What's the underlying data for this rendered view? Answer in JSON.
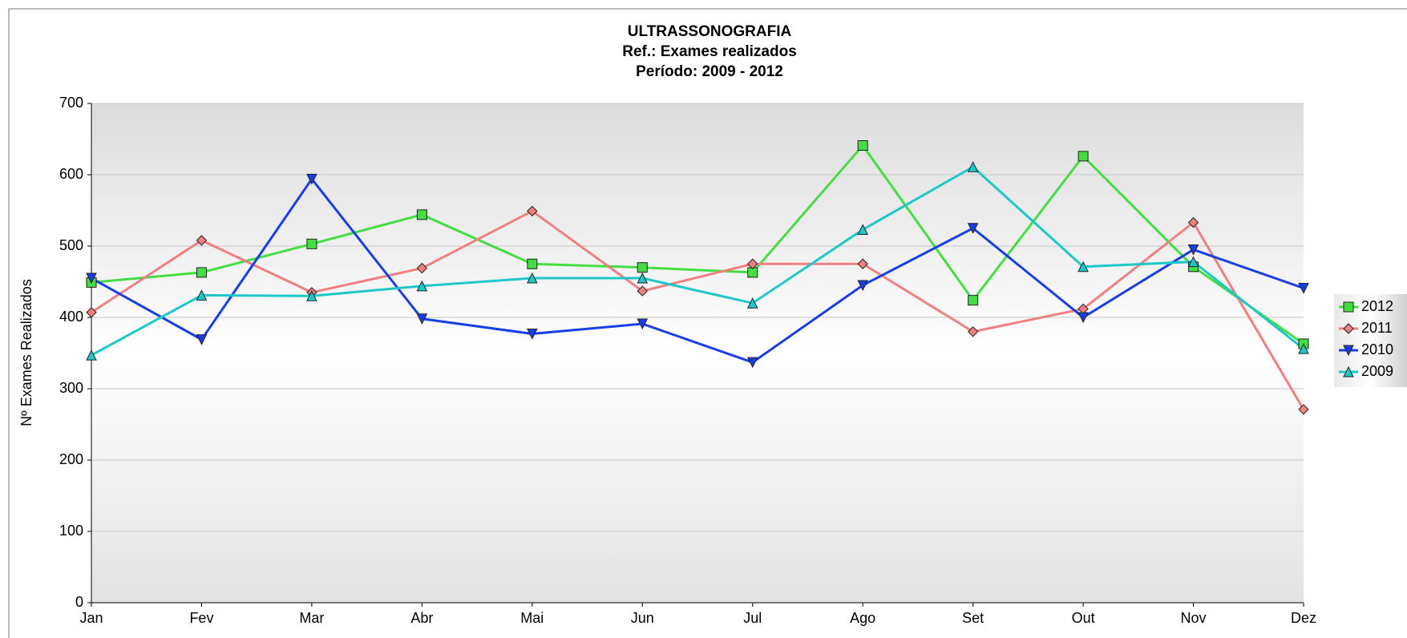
{
  "chart_data": {
    "type": "line",
    "title": "ULTRASSONOGRAFIA",
    "subtitle": [
      "Ref.: Exames realizados",
      "Período: 2009 - 2012"
    ],
    "y_label": "Nº Exames Realizados",
    "categories": [
      "Jan",
      "Fev",
      "Mar",
      "Abr",
      "Mai",
      "Jun",
      "Jul",
      "Ago",
      "Set",
      "Out",
      "Nov",
      "Dez"
    ],
    "series": [
      {
        "name": "2012",
        "color": "#44dd44",
        "marker": "square",
        "values": [
          449,
          463,
          503,
          544,
          475,
          470,
          463,
          641,
          424,
          626,
          471,
          363
        ]
      },
      {
        "name": "2011",
        "color": "#f08080",
        "marker": "diamond",
        "values": [
          407,
          508,
          435,
          469,
          549,
          437,
          475,
          475,
          380,
          412,
          533,
          271
        ]
      },
      {
        "name": "2010",
        "color": "#1a3ee6",
        "marker": "triangle-down",
        "values": [
          455,
          369,
          594,
          398,
          377,
          391,
          337,
          445,
          525,
          400,
          495,
          441
        ]
      },
      {
        "name": "2009",
        "color": "#1ec8c8",
        "marker": "triangle-up",
        "values": [
          347,
          431,
          430,
          444,
          455,
          455,
          420,
          523,
          611,
          471,
          478,
          356
        ]
      }
    ],
    "ylim": [
      0,
      700
    ],
    "yticks": [
      0,
      100,
      200,
      300,
      400,
      500,
      600,
      700
    ],
    "grid": true,
    "legend": "right"
  }
}
